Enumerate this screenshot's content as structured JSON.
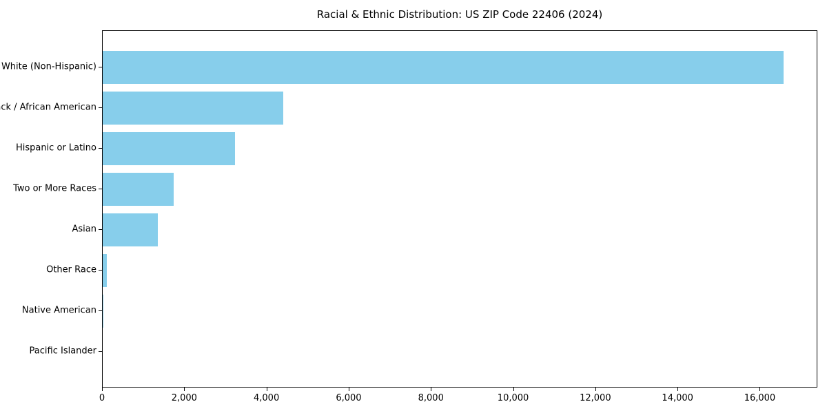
{
  "chart_data": {
    "type": "bar",
    "orientation": "horizontal",
    "title": "Racial & Ethnic Distribution: US ZIP Code 22406 (2024)",
    "categories": [
      "White (Non-Hispanic)",
      "Black / African American",
      "Hispanic or Latino",
      "Two or More Races",
      "Asian",
      "Other Race",
      "Native American",
      "Pacific Islander"
    ],
    "values": [
      16580,
      4410,
      3240,
      1740,
      1360,
      120,
      30,
      10
    ],
    "xlabel": "",
    "ylabel": "",
    "xlim": [
      0,
      17400
    ],
    "xticks": [
      0,
      2000,
      4000,
      6000,
      8000,
      10000,
      12000,
      14000,
      16000
    ],
    "xtick_labels": [
      "0",
      "2,000",
      "4,000",
      "6,000",
      "8,000",
      "10,000",
      "12,000",
      "14,000",
      "16,000"
    ],
    "bar_color": "#87CEEB",
    "bar_height_fraction": 0.8,
    "grid": false,
    "legend_position": "none"
  }
}
